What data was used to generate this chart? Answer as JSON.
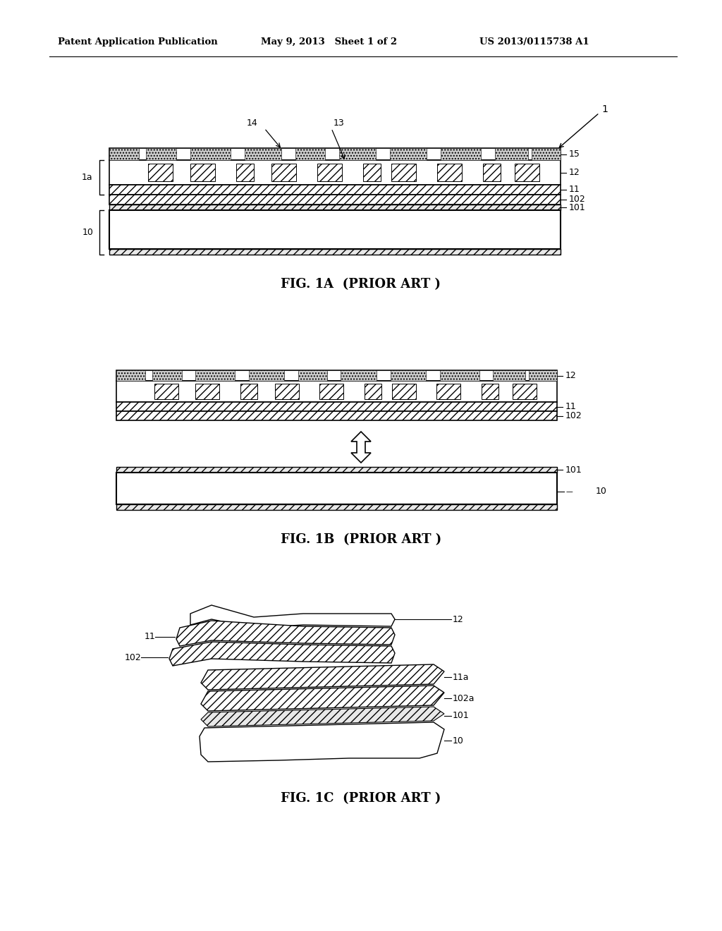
{
  "bg_color": "#ffffff",
  "header_left": "Patent Application Publication",
  "header_mid": "May 9, 2013   Sheet 1 of 2",
  "header_right": "US 2013/0115738 A1",
  "fig1a_caption": "FIG. 1A  (PRIOR ART )",
  "fig1b_caption": "FIG. 1B  (PRIOR ART )",
  "fig1c_caption": "FIG. 1C  (PRIOR ART )",
  "line_color": "#000000"
}
